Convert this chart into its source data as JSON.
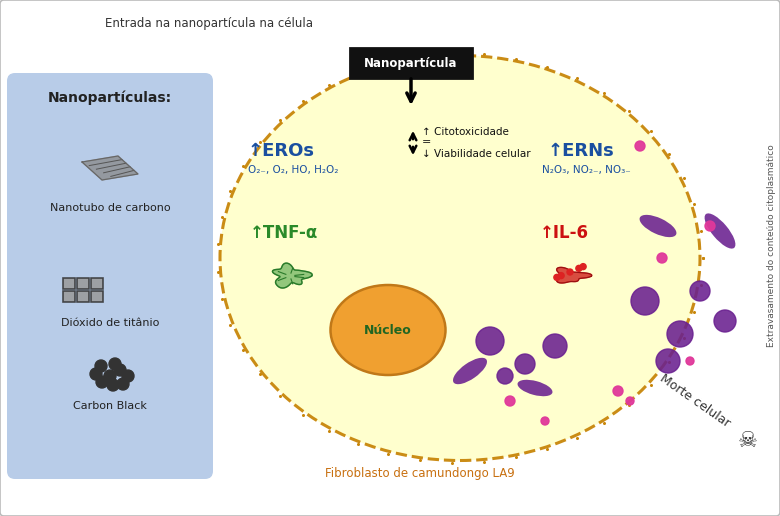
{
  "bg_color": "#ffffff",
  "left_box_color": "#b8cce8",
  "cell_fill_color": "#ffffcc",
  "cell_border_color": "#c8860a",
  "nucleus_fill": "#f0a030",
  "nucleus_edge": "#c07818",
  "title_text": "Entrada na nanopartícula na célula",
  "nanoparticle_label": "Nanopartícula",
  "left_box_title": "Nanopartículas:",
  "left_box_items": [
    "Nanotubo de carbono",
    "Dióxido de titânio",
    "Carbon Black"
  ],
  "eros_label": "↑EROs",
  "eros_formula": "O₂₋, O₂, HO, H₂O₂",
  "erns_label": "↑ERNs",
  "erns_formula": "N₂O₃, NO₂₋, NO₃₋",
  "tnf_label": "↑TNF-α",
  "il6_label": "↑IL-6",
  "cell_label": "Fibroblasto de camundongo LA9",
  "nucleus_label": "Núcleo",
  "morte_label": "Morte celular",
  "right_label": "Extravasamento do conteúdo citoplasmático",
  "blue_color": "#1a4fa0",
  "green_color": "#2a8a2a",
  "red_color": "#cc1111",
  "black_color": "#111111",
  "orange_color": "#c87010",
  "purple_color": "#6a2090",
  "pink_color": "#e0389a",
  "cytotox_up": "↑ Citotoxicidade",
  "cytotox_eq": "=",
  "cytotox_down": "↓ Viabilidade celular"
}
